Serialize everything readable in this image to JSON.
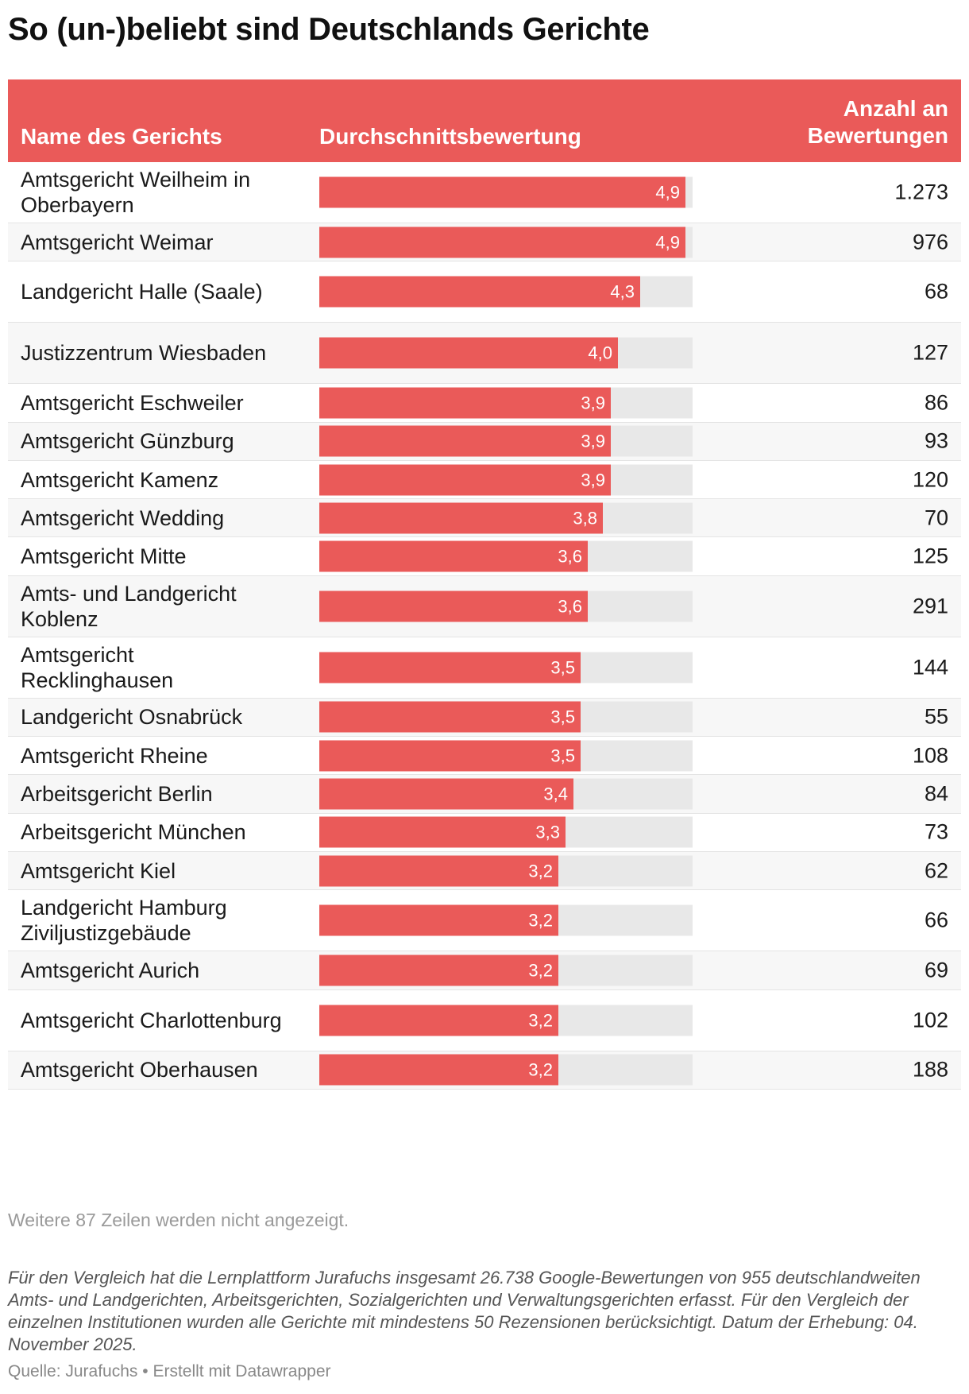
{
  "title": "So (un-)beliebt sind Deutschlands Gerichte",
  "header": {
    "name": "Name des Gerichts",
    "average": "Durchschnittsbewertung",
    "count_line1": "Anzahl an",
    "count_line2": "Bewertungen"
  },
  "chart_data": {
    "type": "table",
    "columns": [
      "Name des Gerichts",
      "Durchschnittsbewertung",
      "Anzahl an Bewertungen"
    ],
    "rating_max": 5,
    "colors": {
      "bar": "#ea5a59",
      "bar_background": "#e8e8e8",
      "header": "#ea5a59"
    },
    "rows": [
      {
        "name": "Amtsgericht Weilheim in Oberbayern",
        "rating": 4.9,
        "rating_label": "4,9",
        "count": "1.273"
      },
      {
        "name": "Amtsgericht Weimar",
        "rating": 4.9,
        "rating_label": "4,9",
        "count": "976"
      },
      {
        "name": "Landgericht Halle (Saale)",
        "rating": 4.3,
        "rating_label": "4,3",
        "count": "68"
      },
      {
        "name": "Justizzentrum Wiesbaden",
        "rating": 4.0,
        "rating_label": "4,0",
        "count": "127"
      },
      {
        "name": "Amtsgericht Eschweiler",
        "rating": 3.9,
        "rating_label": "3,9",
        "count": "86"
      },
      {
        "name": "Amtsgericht Günzburg",
        "rating": 3.9,
        "rating_label": "3,9",
        "count": "93"
      },
      {
        "name": "Amtsgericht Kamenz",
        "rating": 3.9,
        "rating_label": "3,9",
        "count": "120"
      },
      {
        "name": "Amtsgericht Wedding",
        "rating": 3.8,
        "rating_label": "3,8",
        "count": "70"
      },
      {
        "name": "Amtsgericht Mitte",
        "rating": 3.6,
        "rating_label": "3,6",
        "count": "125"
      },
      {
        "name": "Amts- und Landgericht Koblenz",
        "rating": 3.6,
        "rating_label": "3,6",
        "count": "291"
      },
      {
        "name": "Amtsgericht Recklinghausen",
        "rating": 3.5,
        "rating_label": "3,5",
        "count": "144"
      },
      {
        "name": "Landgericht Osnabrück",
        "rating": 3.5,
        "rating_label": "3,5",
        "count": "55"
      },
      {
        "name": "Amtsgericht Rheine",
        "rating": 3.5,
        "rating_label": "3,5",
        "count": "108"
      },
      {
        "name": "Arbeitsgericht Berlin",
        "rating": 3.4,
        "rating_label": "3,4",
        "count": "84"
      },
      {
        "name": "Arbeitsgericht München",
        "rating": 3.3,
        "rating_label": "3,3",
        "count": "73"
      },
      {
        "name": "Amtsgericht Kiel",
        "rating": 3.2,
        "rating_label": "3,2",
        "count": "62"
      },
      {
        "name": "Landgericht Hamburg Ziviljustizgebäude",
        "rating": 3.2,
        "rating_label": "3,2",
        "count": "66"
      },
      {
        "name": "Amtsgericht Aurich",
        "rating": 3.2,
        "rating_label": "3,2",
        "count": "69"
      },
      {
        "name": "Amtsgericht Charlottenburg",
        "rating": 3.2,
        "rating_label": "3,2",
        "count": "102"
      },
      {
        "name": "Amtsgericht Oberhausen",
        "rating": 3.2,
        "rating_label": "3,2",
        "count": "188"
      }
    ]
  },
  "more_rows": "Weitere 87 Zeilen werden nicht angezeigt.",
  "note": "Für den Vergleich hat die Lernplattform Jurafuchs insgesamt 26.738 Google-Bewertungen von 955 deutschlandweiten Amts- und Landgerichten, Arbeitsgerichten, Sozialgerichten und Verwaltungsgerichten erfasst. Für den Vergleich der einzelnen Institutionen wurden alle Gerichte mit mindestens 50 Rezensionen berücksichtigt. Datum der Erhebung: 04. November 2025.",
  "source": "Quelle: Jurafuchs • Erstellt mit Datawrapper"
}
